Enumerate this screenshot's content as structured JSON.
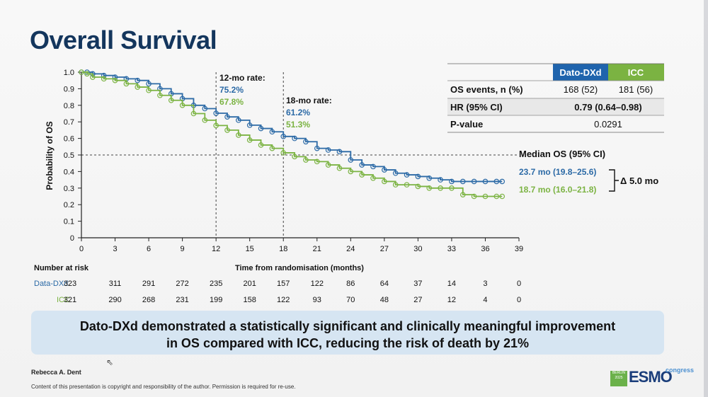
{
  "slide": {
    "title": "Overall Survival",
    "summary_line1": "Dato-DXd demonstrated a statistically significant and clinically meaningful improvement",
    "summary_line2": "in OS compared with ICC, reducing the risk of death by 21%",
    "author": "Rebecca A. Dent",
    "copyright": "Content of this presentation is copyright and responsibility of the author. Permission is required for re-use.",
    "logo": {
      "badge_lines": [
        "BERLIN",
        "2025"
      ],
      "brand": "ESMO",
      "suffix": "congress"
    }
  },
  "table": {
    "headers": [
      "",
      "Dato-DXd",
      "ICC"
    ],
    "rows": [
      {
        "label": "OS events, n (%)",
        "dato": "168 (52)",
        "icc": "181 (56)"
      },
      {
        "label": "HR (95% CI)",
        "combined": "0.79 (0.64–0.98)"
      },
      {
        "label": "P-value",
        "combined": "0.0291"
      }
    ]
  },
  "annotations": {
    "rate12_title": "12-mo rate:",
    "rate12_dato": "75.2%",
    "rate12_icc": "67.8%",
    "rate18_title": "18-mo rate:",
    "rate18_dato": "61.2%",
    "rate18_icc": "51.3%",
    "median_title": "Median OS (95% CI)",
    "median_dato": "23.7 mo (19.8–25.6)",
    "median_icc": "18.7 mo (16.0–21.8)",
    "delta": "Δ 5.0 mo"
  },
  "risk_table": {
    "title": "Number at risk",
    "rows": [
      {
        "label": "Data-DXd",
        "values": [
          "323",
          "311",
          "291",
          "272",
          "235",
          "201",
          "157",
          "122",
          "86",
          "64",
          "37",
          "14",
          "3",
          "0"
        ]
      },
      {
        "label": "ICC",
        "values": [
          "321",
          "290",
          "268",
          "231",
          "199",
          "158",
          "122",
          "93",
          "70",
          "48",
          "27",
          "12",
          "4",
          "0"
        ]
      }
    ]
  },
  "colors": {
    "dato": "#2c6aa6",
    "icc": "#7bb342",
    "title": "#14365d",
    "header_dato": "#1f64ad",
    "header_icc": "#7bb342"
  },
  "chart_data": {
    "type": "line",
    "title": "",
    "xlabel": "Time from randomisation (months)",
    "ylabel": "Probability of OS",
    "xlim": [
      0,
      39
    ],
    "ylim": [
      0,
      1
    ],
    "xticks": [
      "0",
      "3",
      "6",
      "9",
      "12",
      "15",
      "18",
      "21",
      "24",
      "27",
      "30",
      "33",
      "36",
      "39"
    ],
    "yticks": [
      "0",
      "0.1",
      "0.2",
      "0.3",
      "0.4",
      "0.5",
      "0.6",
      "0.7",
      "0.8",
      "0.9",
      "1.0"
    ],
    "reference_lines": {
      "median_y": 0.5,
      "vlines_x": [
        12,
        18
      ]
    },
    "series": [
      {
        "name": "Dato-DXd",
        "x": [
          0,
          0.5,
          1,
          2,
          3,
          4,
          5,
          6,
          7,
          8,
          9,
          10,
          11,
          12,
          13,
          14,
          15,
          16,
          17,
          18,
          19,
          20,
          21,
          22,
          23,
          24,
          25,
          26,
          27,
          28,
          29,
          30,
          31,
          32,
          33,
          34,
          35,
          36,
          37,
          37.5
        ],
        "y": [
          1.0,
          1.0,
          0.99,
          0.98,
          0.97,
          0.96,
          0.95,
          0.93,
          0.9,
          0.87,
          0.84,
          0.8,
          0.78,
          0.752,
          0.73,
          0.71,
          0.68,
          0.66,
          0.64,
          0.612,
          0.6,
          0.58,
          0.54,
          0.53,
          0.52,
          0.47,
          0.44,
          0.43,
          0.41,
          0.39,
          0.38,
          0.37,
          0.36,
          0.35,
          0.34,
          0.34,
          0.34,
          0.34,
          0.34,
          0.34
        ]
      },
      {
        "name": "ICC",
        "x": [
          0,
          0.5,
          1,
          2,
          3,
          4,
          5,
          6,
          7,
          8,
          9,
          10,
          11,
          12,
          13,
          14,
          15,
          16,
          17,
          18,
          19,
          20,
          21,
          22,
          23,
          24,
          25,
          26,
          27,
          28,
          29,
          30,
          31,
          32,
          33,
          34,
          35,
          36,
          37,
          37.5
        ],
        "y": [
          1.0,
          0.99,
          0.97,
          0.96,
          0.95,
          0.93,
          0.91,
          0.89,
          0.86,
          0.83,
          0.8,
          0.75,
          0.71,
          0.678,
          0.65,
          0.62,
          0.59,
          0.56,
          0.54,
          0.513,
          0.49,
          0.47,
          0.46,
          0.44,
          0.42,
          0.4,
          0.38,
          0.36,
          0.34,
          0.32,
          0.32,
          0.31,
          0.3,
          0.3,
          0.3,
          0.26,
          0.25,
          0.25,
          0.25,
          0.25
        ]
      }
    ]
  }
}
